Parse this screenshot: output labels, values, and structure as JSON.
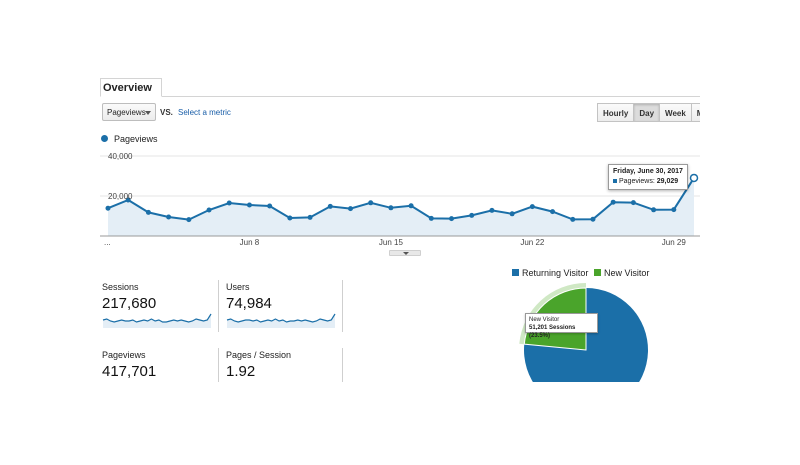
{
  "tabs": [
    {
      "label": "Overview",
      "active": true
    }
  ],
  "metric_selector": {
    "selected": "Pageviews",
    "vs_label": "VS.",
    "select_metric_link": "Select a metric"
  },
  "time_grain": {
    "options": [
      {
        "label": "Hourly",
        "active": false
      },
      {
        "label": "Day",
        "active": true
      },
      {
        "label": "Week",
        "active": false
      },
      {
        "label": "Month",
        "active": false
      }
    ]
  },
  "colors": {
    "primary": "#1b6fa8",
    "new_visitor": "#4aa42b",
    "area_fill": "#e4eef6"
  },
  "chart_data": [
    {
      "type": "area",
      "legend": [
        "Pageviews"
      ],
      "y_tick_labels": [
        "40,000",
        "20,000"
      ],
      "ylim": [
        0,
        40000
      ],
      "x_tick_labels": [
        "...",
        "Jun 8",
        "Jun 15",
        "Jun 22",
        "Jun 29"
      ],
      "series": [
        {
          "name": "Pageviews",
          "values": [
            13900,
            18000,
            11800,
            9500,
            8200,
            13000,
            16500,
            15500,
            15000,
            9000,
            9300,
            14800,
            13700,
            16600,
            14100,
            15100,
            8800,
            8700,
            10300,
            12800,
            11100,
            14700,
            12200,
            8300,
            8400,
            16900,
            16700,
            13100,
            13200,
            29029
          ]
        }
      ],
      "grid": true
    },
    {
      "type": "pie",
      "legend": [
        "Returning Visitor",
        "New Visitor"
      ],
      "categories": [
        "Returning Visitor",
        "New Visitor"
      ],
      "values": [
        76.5,
        23.5
      ]
    }
  ],
  "tooltip": {
    "title": "Friday, June 30, 2017",
    "series_name": "Pageviews:",
    "series_value": "29,029"
  },
  "scorecards": [
    {
      "label": "Sessions",
      "value": "217,680"
    },
    {
      "label": "Users",
      "value": "74,984"
    },
    {
      "label": "Pageviews",
      "value": "417,701"
    },
    {
      "label": "Pages / Session",
      "value": "1.92"
    }
  ],
  "sparkline_values": [
    [
      6,
      7,
      5,
      4,
      5,
      6,
      5,
      5,
      6,
      4,
      5,
      6,
      5,
      7,
      5,
      6,
      4,
      4,
      5,
      6,
      5,
      6,
      5,
      4,
      5,
      7,
      6,
      5,
      6,
      12
    ],
    [
      6,
      7,
      5,
      4,
      5,
      6,
      6,
      5,
      6,
      4,
      5,
      6,
      5,
      7,
      5,
      6,
      4,
      5,
      5,
      6,
      5,
      6,
      5,
      4,
      5,
      7,
      6,
      5,
      6,
      12
    ]
  ],
  "pie_tooltip": {
    "name": "New Visitor",
    "value": "51,201 Sessions (23.5%)"
  }
}
